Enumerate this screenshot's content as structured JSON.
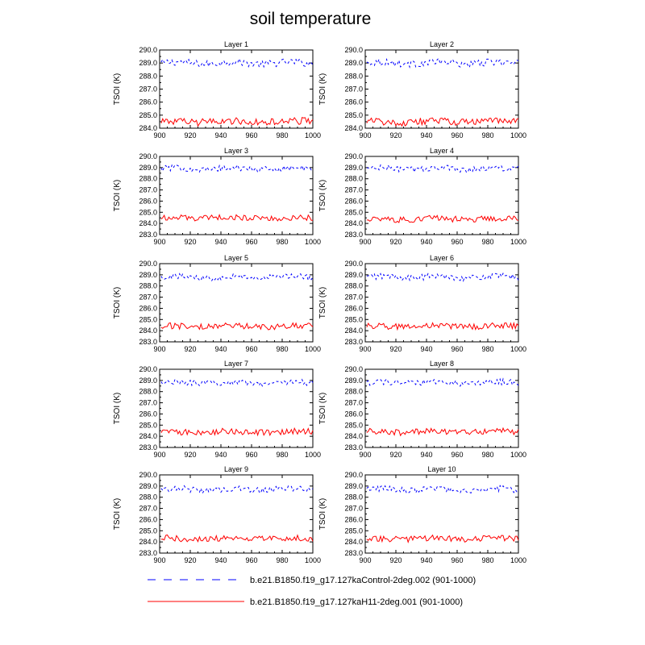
{
  "chart_data": {
    "type": "line",
    "title": "soil temperature",
    "xlabel": "",
    "ylabel": "TSOI  (K)",
    "xlim": [
      900,
      1000
    ],
    "xticks": [
      "900",
      "920",
      "940",
      "960",
      "980",
      "1000"
    ],
    "legend_placement": "bottom",
    "series_meta": [
      {
        "name": "b.e21.B1850.f19_g17.127kaControl-2deg.002 (901-1000)",
        "color": "#0000ff",
        "dash": "dashed"
      },
      {
        "name": "b.e21.B1850.f19_g17.127kaH11-2deg.001 (901-1000)",
        "color": "#ff0000",
        "dash": "solid"
      }
    ],
    "panels": [
      {
        "title": "Layer 1",
        "ylim": [
          284.0,
          290.0
        ],
        "yticks": [
          "290.0",
          "289.0",
          "288.0",
          "287.0",
          "286.0",
          "285.0",
          "284.0"
        ],
        "control_mean": 289.0,
        "h11_mean": 284.5
      },
      {
        "title": "Layer 2",
        "ylim": [
          284.0,
          290.0
        ],
        "yticks": [
          "290.0",
          "289.0",
          "288.0",
          "287.0",
          "286.0",
          "285.0",
          "284.0"
        ],
        "control_mean": 289.0,
        "h11_mean": 284.5
      },
      {
        "title": "Layer 3",
        "ylim": [
          283.0,
          290.0
        ],
        "yticks": [
          "290.0",
          "289.0",
          "288.0",
          "287.0",
          "286.0",
          "285.0",
          "284.0",
          "283.0"
        ],
        "control_mean": 288.9,
        "h11_mean": 284.5
      },
      {
        "title": "Layer 4",
        "ylim": [
          283.0,
          290.0
        ],
        "yticks": [
          "290.0",
          "289.0",
          "288.0",
          "287.0",
          "286.0",
          "285.0",
          "284.0",
          "283.0"
        ],
        "control_mean": 288.9,
        "h11_mean": 284.4
      },
      {
        "title": "Layer 5",
        "ylim": [
          283.0,
          290.0
        ],
        "yticks": [
          "290.0",
          "289.0",
          "288.0",
          "287.0",
          "286.0",
          "285.0",
          "284.0",
          "283.0"
        ],
        "control_mean": 288.8,
        "h11_mean": 284.4
      },
      {
        "title": "Layer 6",
        "ylim": [
          283.0,
          290.0
        ],
        "yticks": [
          "290.0",
          "289.0",
          "288.0",
          "287.0",
          "286.0",
          "285.0",
          "284.0",
          "283.0"
        ],
        "control_mean": 288.8,
        "h11_mean": 284.4
      },
      {
        "title": "Layer 7",
        "ylim": [
          283.0,
          290.0
        ],
        "yticks": [
          "290.0",
          "289.0",
          "288.0",
          "287.0",
          "286.0",
          "285.0",
          "284.0",
          "283.0"
        ],
        "control_mean": 288.8,
        "h11_mean": 284.4
      },
      {
        "title": "Layer 8",
        "ylim": [
          283.0,
          290.0
        ],
        "yticks": [
          "290.0",
          "289.0",
          "288.0",
          "287.0",
          "286.0",
          "285.0",
          "284.0",
          "283.0"
        ],
        "control_mean": 288.8,
        "h11_mean": 284.4
      },
      {
        "title": "Layer 9",
        "ylim": [
          283.0,
          290.0
        ],
        "yticks": [
          "290.0",
          "289.0",
          "288.0",
          "287.0",
          "286.0",
          "285.0",
          "284.0",
          "283.0"
        ],
        "control_mean": 288.7,
        "h11_mean": 284.3
      },
      {
        "title": "Layer 10",
        "ylim": [
          283.0,
          290.0
        ],
        "yticks": [
          "290.0",
          "289.0",
          "288.0",
          "287.0",
          "286.0",
          "285.0",
          "284.0",
          "283.0"
        ],
        "control_mean": 288.7,
        "h11_mean": 284.3
      }
    ]
  }
}
